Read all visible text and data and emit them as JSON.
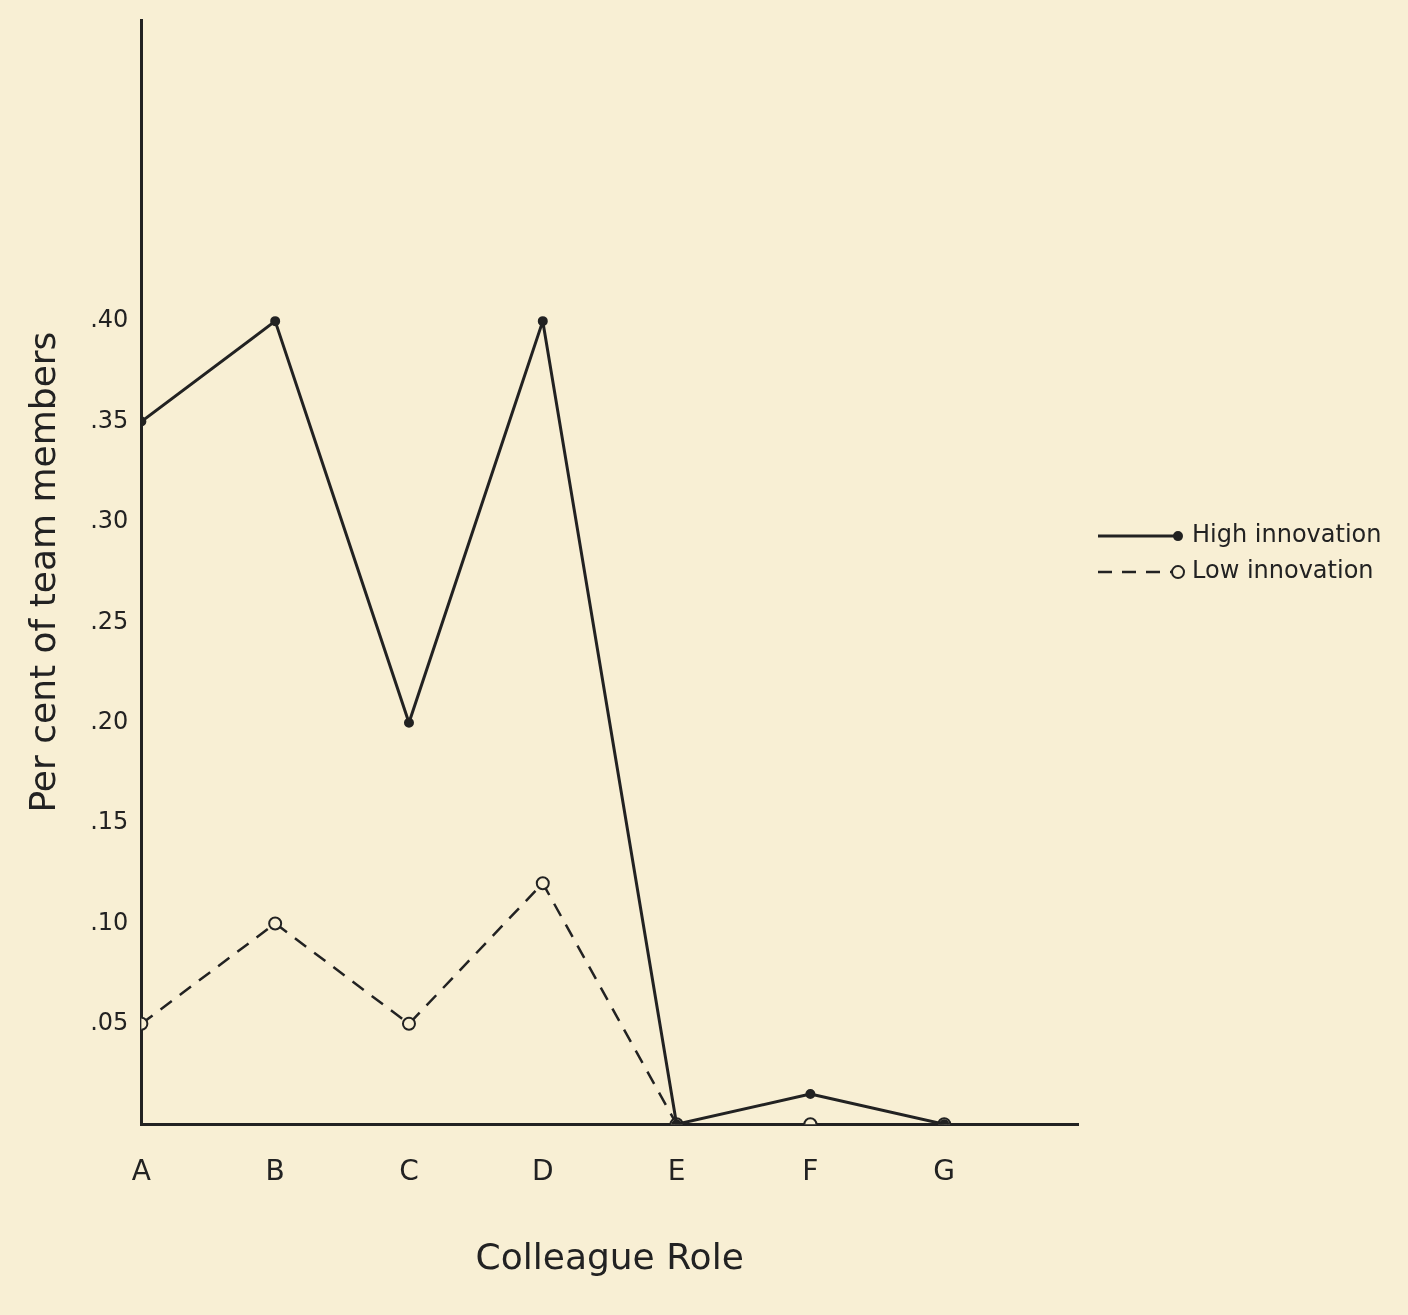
{
  "chart_data": {
    "type": "line",
    "xlabel": "Colleague Role",
    "ylabel": "Per cent of team members",
    "categories": [
      "A",
      "B",
      "C",
      "D",
      "E",
      "F",
      "G"
    ],
    "series": [
      {
        "name": "High innovation",
        "color": "#222222",
        "values": [
          0.35,
          0.4,
          0.2,
          0.4,
          0,
          0.015,
          0
        ],
        "line_style": "solid"
      },
      {
        "name": "Low innovation",
        "color": "#222222",
        "values": [
          0.05,
          0.1,
          0.05,
          0.12,
          0,
          0,
          0
        ],
        "line_style": "dashed"
      }
    ],
    "ylim": [
      0,
      0.55
    ],
    "yticks": [
      {
        "value": 0.05,
        "label": ".05"
      },
      {
        "value": 0.1,
        "label": ".10"
      },
      {
        "value": 0.15,
        "label": ".15"
      },
      {
        "value": 0.2,
        "label": ".20"
      },
      {
        "value": 0.25,
        "label": ".25"
      },
      {
        "value": 0.3,
        "label": ".30"
      },
      {
        "value": 0.35,
        "label": ".35"
      },
      {
        "value": 0.4,
        "label": ".40"
      }
    ],
    "grid": false,
    "legend": "right",
    "marker": "circle"
  }
}
